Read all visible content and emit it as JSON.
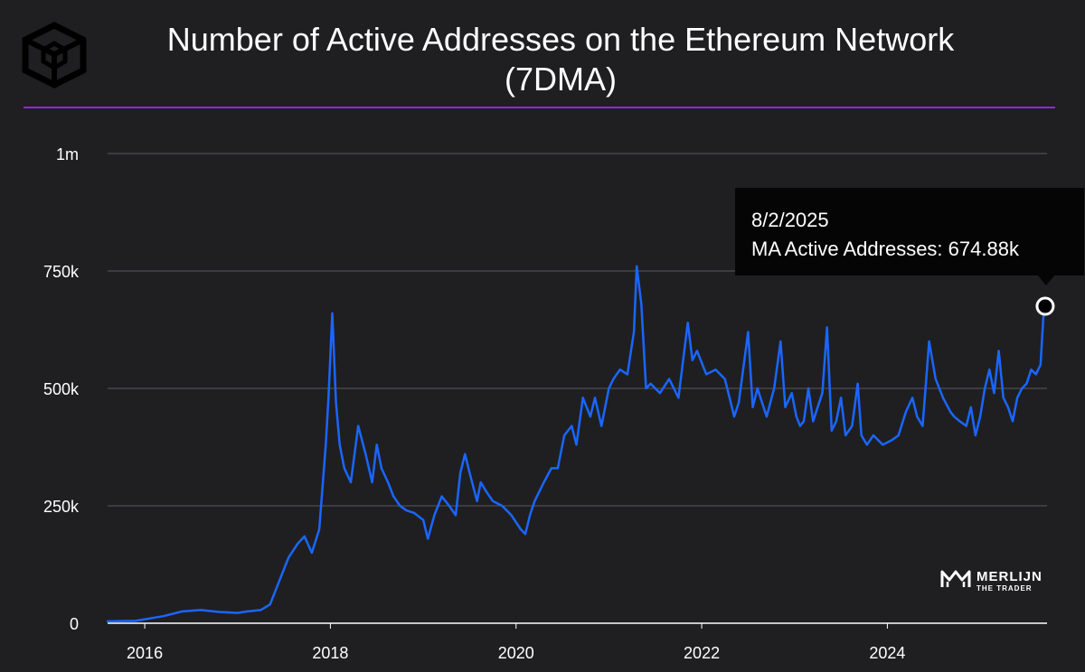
{
  "header": {
    "title_line1": "Number of Active Addresses on the Ethereum Network",
    "title_line2": "(7DMA)",
    "logo_icon": "cube-logo-icon"
  },
  "colors": {
    "background": "#1f1f21",
    "line": "#1a66ff",
    "accent_rule": "#a020f0",
    "grid": "#5a5a5e",
    "axis": "#ffffff",
    "tooltip_bg": "#050505"
  },
  "tooltip": {
    "date": "8/2/2025",
    "label": "MA Active Addresses: 674.88k"
  },
  "watermark": {
    "name": "MERLIJN",
    "sub": "THE TRADER",
    "icon": "merlijn-logo-icon"
  },
  "chart_data": {
    "type": "line",
    "title": "Number of Active Addresses on the Ethereum Network (7DMA)",
    "xlabel": "",
    "ylabel": "",
    "ylim": [
      0,
      1000000
    ],
    "xlim": [
      2015.6,
      2025.72
    ],
    "grid": true,
    "legend": "none",
    "y_ticks": [
      {
        "value": 0,
        "label": "0"
      },
      {
        "value": 250000,
        "label": "250k"
      },
      {
        "value": 500000,
        "label": "500k"
      },
      {
        "value": 750000,
        "label": "750k"
      },
      {
        "value": 1000000,
        "label": "1m"
      }
    ],
    "x_ticks": [
      {
        "value": 2016,
        "label": "2016"
      },
      {
        "value": 2018,
        "label": "2018"
      },
      {
        "value": 2020,
        "label": "2020"
      },
      {
        "value": 2022,
        "label": "2022"
      },
      {
        "value": 2024,
        "label": "2024"
      }
    ],
    "series": [
      {
        "x": [
          2015.6,
          2015.9,
          2016.2,
          2016.4,
          2016.6,
          2016.8,
          2017.0,
          2017.1,
          2017.25,
          2017.35,
          2017.45,
          2017.55,
          2017.65,
          2017.72,
          2017.8,
          2017.88,
          2017.95,
          2017.98,
          2018.02,
          2018.06,
          2018.1,
          2018.15,
          2018.22,
          2018.3,
          2018.38,
          2018.45,
          2018.5,
          2018.55,
          2018.62,
          2018.68,
          2018.75,
          2018.82,
          2018.9,
          2019.0,
          2019.05,
          2019.12,
          2019.2,
          2019.28,
          2019.35,
          2019.4,
          2019.45,
          2019.5,
          2019.58,
          2019.62,
          2019.68,
          2019.75,
          2019.85,
          2019.95,
          2020.05,
          2020.1,
          2020.15,
          2020.2,
          2020.3,
          2020.38,
          2020.45,
          2020.52,
          2020.6,
          2020.65,
          2020.72,
          2020.8,
          2020.85,
          2020.92,
          2021.0,
          2021.05,
          2021.12,
          2021.2,
          2021.27,
          2021.3,
          2021.35,
          2021.4,
          2021.45,
          2021.55,
          2021.65,
          2021.75,
          2021.85,
          2021.9,
          2021.95,
          2022.05,
          2022.15,
          2022.25,
          2022.3,
          2022.35,
          2022.4,
          2022.5,
          2022.55,
          2022.6,
          2022.7,
          2022.78,
          2022.85,
          2022.9,
          2022.97,
          2023.02,
          2023.06,
          2023.1,
          2023.15,
          2023.2,
          2023.3,
          2023.35,
          2023.4,
          2023.45,
          2023.5,
          2023.55,
          2023.62,
          2023.68,
          2023.72,
          2023.78,
          2023.85,
          2023.95,
          2024.05,
          2024.12,
          2024.2,
          2024.27,
          2024.32,
          2024.38,
          2024.45,
          2024.52,
          2024.6,
          2024.68,
          2024.72,
          2024.78,
          2024.85,
          2024.9,
          2024.95,
          2025.0,
          2025.05,
          2025.1,
          2025.15,
          2025.2,
          2025.25,
          2025.3,
          2025.35,
          2025.4,
          2025.45,
          2025.5,
          2025.55,
          2025.6,
          2025.65,
          2025.68,
          2025.7
        ],
        "y": [
          4000,
          5000,
          15000,
          25000,
          28000,
          24000,
          22000,
          25000,
          28000,
          40000,
          90000,
          140000,
          170000,
          185000,
          150000,
          200000,
          380000,
          480000,
          660000,
          470000,
          380000,
          330000,
          300000,
          420000,
          360000,
          300000,
          380000,
          330000,
          300000,
          270000,
          250000,
          240000,
          235000,
          220000,
          180000,
          230000,
          270000,
          250000,
          230000,
          320000,
          360000,
          320000,
          260000,
          300000,
          280000,
          260000,
          250000,
          230000,
          200000,
          190000,
          230000,
          260000,
          300000,
          330000,
          330000,
          400000,
          420000,
          380000,
          480000,
          440000,
          480000,
          420000,
          500000,
          520000,
          540000,
          530000,
          620000,
          760000,
          680000,
          500000,
          510000,
          490000,
          520000,
          480000,
          640000,
          560000,
          580000,
          530000,
          540000,
          520000,
          480000,
          440000,
          470000,
          620000,
          460000,
          500000,
          440000,
          500000,
          600000,
          460000,
          490000,
          440000,
          420000,
          430000,
          500000,
          430000,
          490000,
          630000,
          410000,
          430000,
          480000,
          400000,
          420000,
          510000,
          400000,
          380000,
          400000,
          380000,
          390000,
          400000,
          450000,
          480000,
          440000,
          420000,
          600000,
          520000,
          480000,
          450000,
          440000,
          430000,
          420000,
          460000,
          400000,
          440000,
          500000,
          540000,
          490000,
          580000,
          480000,
          460000,
          430000,
          480000,
          500000,
          510000,
          540000,
          530000,
          550000,
          650000,
          674880
        ]
      }
    ]
  }
}
